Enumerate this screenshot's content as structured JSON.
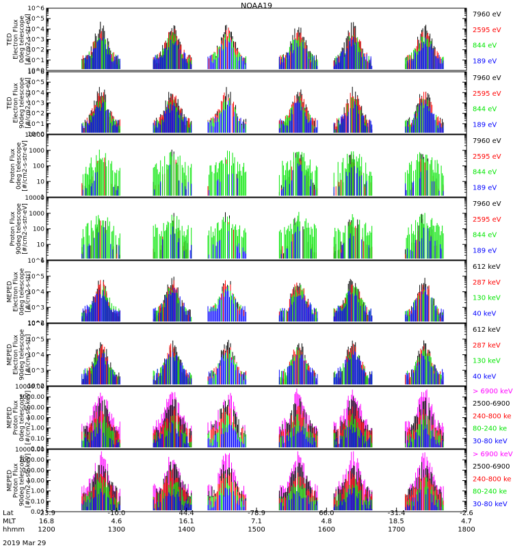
{
  "title": "NOAA19",
  "date_label": "2019 Mar 29",
  "colors": {
    "black": "#000000",
    "red": "#ff0000",
    "green": "#00e600",
    "blue": "#0000ff",
    "magenta": "#ff00ff"
  },
  "footer": {
    "row_labels": [
      "Lat",
      "MLT",
      "hhmm"
    ],
    "columns": [
      {
        "lat": "-23.9",
        "mlt": "16.8",
        "hhmm": "1200"
      },
      {
        "lat": "-10.0",
        "mlt": "4.6",
        "hhmm": "1300"
      },
      {
        "lat": "44.4",
        "mlt": "16.1",
        "hhmm": "1400"
      },
      {
        "lat": "-78.9",
        "mlt": "7.1",
        "hhmm": "1500"
      },
      {
        "lat": "66.0",
        "mlt": "4.8",
        "hhmm": "1600"
      },
      {
        "lat": "-31.4",
        "mlt": "18.5",
        "hhmm": "1700"
      },
      {
        "lat": "-2.6",
        "mlt": "4.7",
        "hhmm": "1800"
      }
    ]
  },
  "chart_data": [
    {
      "type": "line",
      "scale": "log",
      "ylim": [
        1,
        1000000
      ],
      "ylabel": [
        "TED",
        "Electron Flux",
        "0deg telescope",
        "[#/cm2-s-str-eV]"
      ],
      "ytick_labels": [
        "10^0",
        "10^1",
        "10^2",
        "10^3",
        "10^4",
        "10^5",
        "10^6"
      ],
      "ytick_values": [
        1,
        10,
        100,
        1000,
        10000,
        100000,
        1000000
      ],
      "legend": [
        {
          "label": "7960 eV",
          "color": "black"
        },
        {
          "label": "2595 eV",
          "color": "red"
        },
        {
          "label": "844 eV",
          "color": "green"
        },
        {
          "label": "189 eV",
          "color": "blue"
        }
      ]
    },
    {
      "type": "line",
      "scale": "log",
      "ylim": [
        1,
        1000000
      ],
      "ylabel": [
        "TED",
        "Electron Flux",
        "90deg telescope",
        "[#/cm2-s-str-eV]"
      ],
      "ytick_labels": [
        "10^0",
        "10^1",
        "10^2",
        "10^3",
        "10^4",
        "10^5",
        "10^6"
      ],
      "ytick_values": [
        1,
        10,
        100,
        1000,
        10000,
        100000,
        1000000
      ],
      "legend": [
        {
          "label": "7960 eV",
          "color": "black"
        },
        {
          "label": "2595 eV",
          "color": "red"
        },
        {
          "label": "844 eV",
          "color": "green"
        },
        {
          "label": "189 eV",
          "color": "blue"
        }
      ]
    },
    {
      "type": "line",
      "scale": "log",
      "ylim": [
        1,
        10000
      ],
      "ylabel": [
        "Proton Flux",
        "0deg telescope",
        "[#/cm2-s-str-eV]"
      ],
      "ytick_labels": [
        "1",
        "10",
        "100",
        "1000",
        "10000"
      ],
      "ytick_values": [
        1,
        10,
        100,
        1000,
        10000
      ],
      "legend": [
        {
          "label": "7960 eV",
          "color": "black"
        },
        {
          "label": "2595 eV",
          "color": "red"
        },
        {
          "label": "844 eV",
          "color": "green"
        },
        {
          "label": "189 eV",
          "color": "blue"
        }
      ]
    },
    {
      "type": "line",
      "scale": "log",
      "ylim": [
        1,
        10000
      ],
      "ylabel": [
        "Proton Flux",
        "90deg telescope",
        "[#/cm2-s-str-eV]"
      ],
      "ytick_labels": [
        "1",
        "10",
        "100",
        "1000",
        "10000"
      ],
      "ytick_values": [
        1,
        10,
        100,
        1000,
        10000
      ],
      "legend": [
        {
          "label": "7960 eV",
          "color": "black"
        },
        {
          "label": "2595 eV",
          "color": "red"
        },
        {
          "label": "844 eV",
          "color": "green"
        },
        {
          "label": "189 eV",
          "color": "blue"
        }
      ]
    },
    {
      "type": "line",
      "scale": "log",
      "ylim": [
        100,
        1000000
      ],
      "ylabel": [
        "MEPED",
        "Electron Flux",
        "0deg telescope",
        "[#/cm2-s-str]"
      ],
      "ytick_labels": [
        "10^2",
        "10^3",
        "10^4",
        "10^5",
        "10^6"
      ],
      "ytick_values": [
        100,
        1000,
        10000,
        100000,
        1000000
      ],
      "legend": [
        {
          "label": "612 keV",
          "color": "black"
        },
        {
          "label": "287 keV",
          "color": "red"
        },
        {
          "label": "130 keV",
          "color": "green"
        },
        {
          "label": "40 keV",
          "color": "blue"
        }
      ]
    },
    {
      "type": "line",
      "scale": "log",
      "ylim": [
        100,
        1000000
      ],
      "ylabel": [
        "MEPED",
        "Electron Flux",
        "90deg telescope",
        "[#/cm2-s-str]"
      ],
      "ytick_labels": [
        "10^2",
        "10^3",
        "10^4",
        "10^5",
        "10^6"
      ],
      "ytick_values": [
        100,
        1000,
        10000,
        100000,
        1000000
      ],
      "legend": [
        {
          "label": "612 keV",
          "color": "black"
        },
        {
          "label": "287 keV",
          "color": "red"
        },
        {
          "label": "130 keV",
          "color": "green"
        },
        {
          "label": "40 keV",
          "color": "blue"
        }
      ]
    },
    {
      "type": "line",
      "scale": "log",
      "ylim": [
        0.01,
        10000
      ],
      "ylabel": [
        "MEPED",
        "Proton Flux",
        "0deg telescope",
        "[#/cm2-s-str-keV]"
      ],
      "ytick_labels": [
        "0.01",
        "0.10",
        "1.00",
        "10.00",
        "100.00",
        "1000.00",
        "10000.00"
      ],
      "ytick_values": [
        0.01,
        0.1,
        1,
        10,
        100,
        1000,
        10000
      ],
      "legend": [
        {
          "label": "> 6900 keV",
          "color": "magenta"
        },
        {
          "label": "2500-6900",
          "color": "black"
        },
        {
          "label": "240-800 ke",
          "color": "red"
        },
        {
          "label": "80-240 ke",
          "color": "green"
        },
        {
          "label": "30-80 keV",
          "color": "blue"
        }
      ]
    },
    {
      "type": "line",
      "scale": "log",
      "ylim": [
        0.01,
        10000
      ],
      "ylabel": [
        "MEPED",
        "Proton Flux",
        "90deg telescope",
        "[#/cm2-s-str-keV]"
      ],
      "ytick_labels": [
        "0.01",
        "0.10",
        "1.00",
        "10.00",
        "100.00",
        "1000.00",
        "10000.00"
      ],
      "ytick_values": [
        0.01,
        0.1,
        1,
        10,
        100,
        1000,
        10000
      ],
      "legend": [
        {
          "label": "> 6900 keV",
          "color": "magenta"
        },
        {
          "label": "2500-6900",
          "color": "black"
        },
        {
          "label": "240-800 ke",
          "color": "red"
        },
        {
          "label": "80-240 ke",
          "color": "green"
        },
        {
          "label": "30-80 keV",
          "color": "blue"
        }
      ]
    }
  ]
}
